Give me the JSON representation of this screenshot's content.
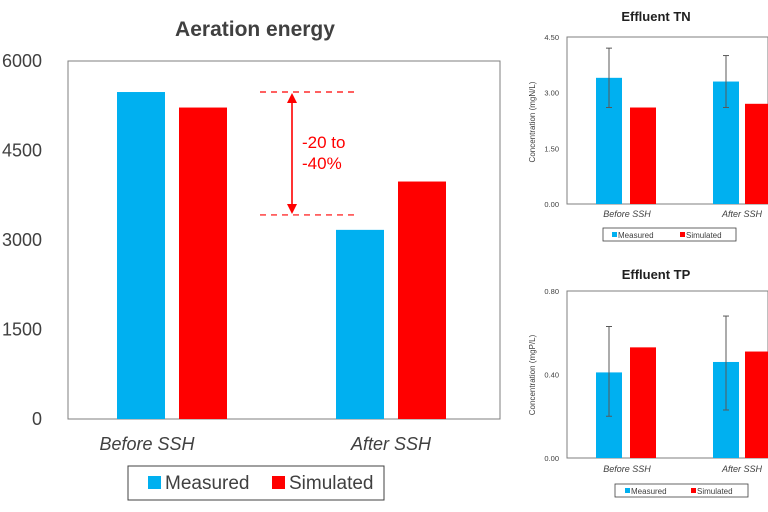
{
  "colors": {
    "measured": "#00b0f0",
    "simulated": "#ff0000",
    "axis_text": "#404040",
    "frame": "#7f7f7f",
    "errorbar": "#595959",
    "annotation": "#ff0000"
  },
  "chart_data": [
    {
      "id": "aeration",
      "type": "bar",
      "title": "Aeration energy",
      "xlabel": "",
      "ylabel": "",
      "ylim": [
        0,
        6000
      ],
      "yticks": [
        "0",
        "1500",
        "3000",
        "4500",
        "6000"
      ],
      "categories": [
        "Before SSH",
        "After SSH"
      ],
      "series": [
        {
          "name": "Measured",
          "values": [
            5480,
            3170
          ]
        },
        {
          "name": "Simulated",
          "values": [
            5220,
            3980
          ]
        }
      ],
      "legend": [
        "Measured",
        "Simulated"
      ],
      "annotation": {
        "line1": "-20 to",
        "line2": "-40%",
        "from": 5480,
        "to": 3420
      }
    },
    {
      "id": "tn",
      "type": "bar",
      "title": "Effluent TN",
      "xlabel": "",
      "ylabel": "Concentration (mgN/L)",
      "ylim": [
        0,
        4.5
      ],
      "yticks": [
        "0.00",
        "1.50",
        "3.00",
        "4.50"
      ],
      "categories": [
        "Before SSH",
        "After SSH"
      ],
      "series": [
        {
          "name": "Measured",
          "values": [
            3.4,
            3.3
          ],
          "error_low": [
            2.6,
            2.6
          ],
          "error_high": [
            4.2,
            4.0
          ]
        },
        {
          "name": "Simulated",
          "values": [
            2.6,
            2.7
          ]
        }
      ],
      "legend": [
        "Measured",
        "Simulated"
      ]
    },
    {
      "id": "tp",
      "type": "bar",
      "title": "Effluent TP",
      "xlabel": "",
      "ylabel": "Concentration (mgP/L)",
      "ylim": [
        0,
        0.8
      ],
      "yticks": [
        "0.00",
        "0.40",
        "0.80"
      ],
      "categories": [
        "Before SSH",
        "After SSH"
      ],
      "series": [
        {
          "name": "Measured",
          "values": [
            0.41,
            0.46
          ],
          "error_low": [
            0.2,
            0.23
          ],
          "error_high": [
            0.63,
            0.68
          ]
        },
        {
          "name": "Simulated",
          "values": [
            0.53,
            0.51
          ]
        }
      ],
      "legend": [
        "Measured",
        "Simulated"
      ]
    }
  ]
}
